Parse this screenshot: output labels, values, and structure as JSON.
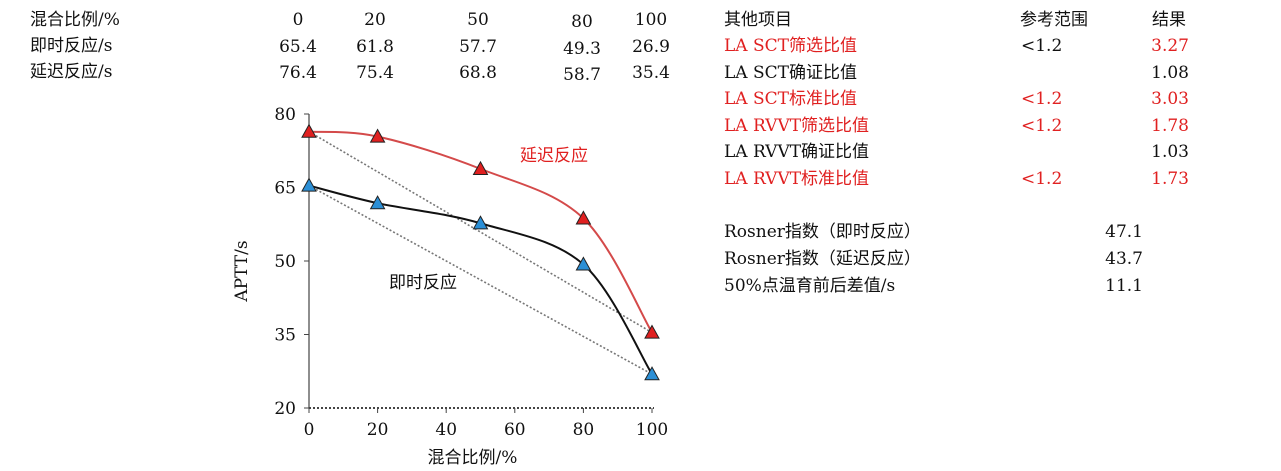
{
  "mix_table": {
    "header_label": "混合比例/%",
    "ratios": [
      "0",
      "20",
      "50",
      "80",
      "100"
    ],
    "rows": [
      {
        "label": "即时反应/s",
        "values": [
          "65.4",
          "61.8",
          "57.7",
          "49.3",
          "26.9"
        ]
      },
      {
        "label": "延迟反应/s",
        "values": [
          "76.4",
          "75.4",
          "68.8",
          "58.7",
          "35.4"
        ]
      }
    ]
  },
  "results_table": {
    "headers": {
      "item": "其他项目",
      "ref": "参考范围",
      "result": "结果"
    },
    "rows": [
      {
        "item": "LA SCT筛选比值",
        "ref": "<1.2",
        "result": "3.27",
        "item_color": "#e02020",
        "ref_color": "#111111",
        "result_color": "#e02020"
      },
      {
        "item": "LA SCT确证比值",
        "ref": "",
        "result": "1.08",
        "item_color": "#111111",
        "ref_color": "#111111",
        "result_color": "#111111"
      },
      {
        "item": "LA SCT标准比值",
        "ref": "<1.2",
        "result": "3.03",
        "item_color": "#e02020",
        "ref_color": "#e02020",
        "result_color": "#e02020"
      },
      {
        "item": "LA RVVT筛选比值",
        "ref": "<1.2",
        "result": "1.78",
        "item_color": "#e02020",
        "ref_color": "#e02020",
        "result_color": "#e02020"
      },
      {
        "item": "LA RVVT确证比值",
        "ref": "",
        "result": "1.03",
        "item_color": "#111111",
        "ref_color": "#111111",
        "result_color": "#111111"
      },
      {
        "item": "LA RVVT标准比值",
        "ref": "<1.2",
        "result": "1.73",
        "item_color": "#e02020",
        "ref_color": "#e02020",
        "result_color": "#e02020"
      }
    ]
  },
  "index_table": {
    "rows": [
      {
        "label": "Rosner指数（即时反应）",
        "value": "47.1"
      },
      {
        "label": "Rosner指数（延迟反应）",
        "value": "43.7"
      },
      {
        "label": "50%点温育前后差值/s",
        "value": "11.1"
      }
    ]
  },
  "chart_data": {
    "type": "line",
    "xlabel": "混合比例/%",
    "ylabel": "APTT/s",
    "xlim": [
      0,
      100
    ],
    "ylim": [
      20,
      80
    ],
    "xticks": [
      "0",
      "20",
      "40",
      "60",
      "80",
      "100"
    ],
    "yticks": [
      "20",
      "35",
      "50",
      "65",
      "80"
    ],
    "series": [
      {
        "name": "即时反应",
        "x": [
          0,
          20,
          50,
          80,
          100
        ],
        "y": [
          65.4,
          61.8,
          57.7,
          49.3,
          26.9
        ],
        "color": "#111111",
        "marker_color": "#2b8fd6"
      },
      {
        "name": "延迟反应",
        "x": [
          0,
          20,
          50,
          80,
          100
        ],
        "y": [
          76.4,
          75.4,
          68.8,
          58.7,
          35.4
        ],
        "color": "#d44a4a",
        "marker_color": "#e02020"
      }
    ],
    "reference_lines": [
      {
        "x": [
          0,
          100
        ],
        "y": [
          65.4,
          26.9
        ]
      },
      {
        "x": [
          0,
          100
        ],
        "y": [
          76.4,
          35.4
        ]
      }
    ],
    "colors": {
      "axis": "#444444",
      "reference": "#777777",
      "delayed_label": "#e02020",
      "immediate_label": "#111111"
    }
  }
}
